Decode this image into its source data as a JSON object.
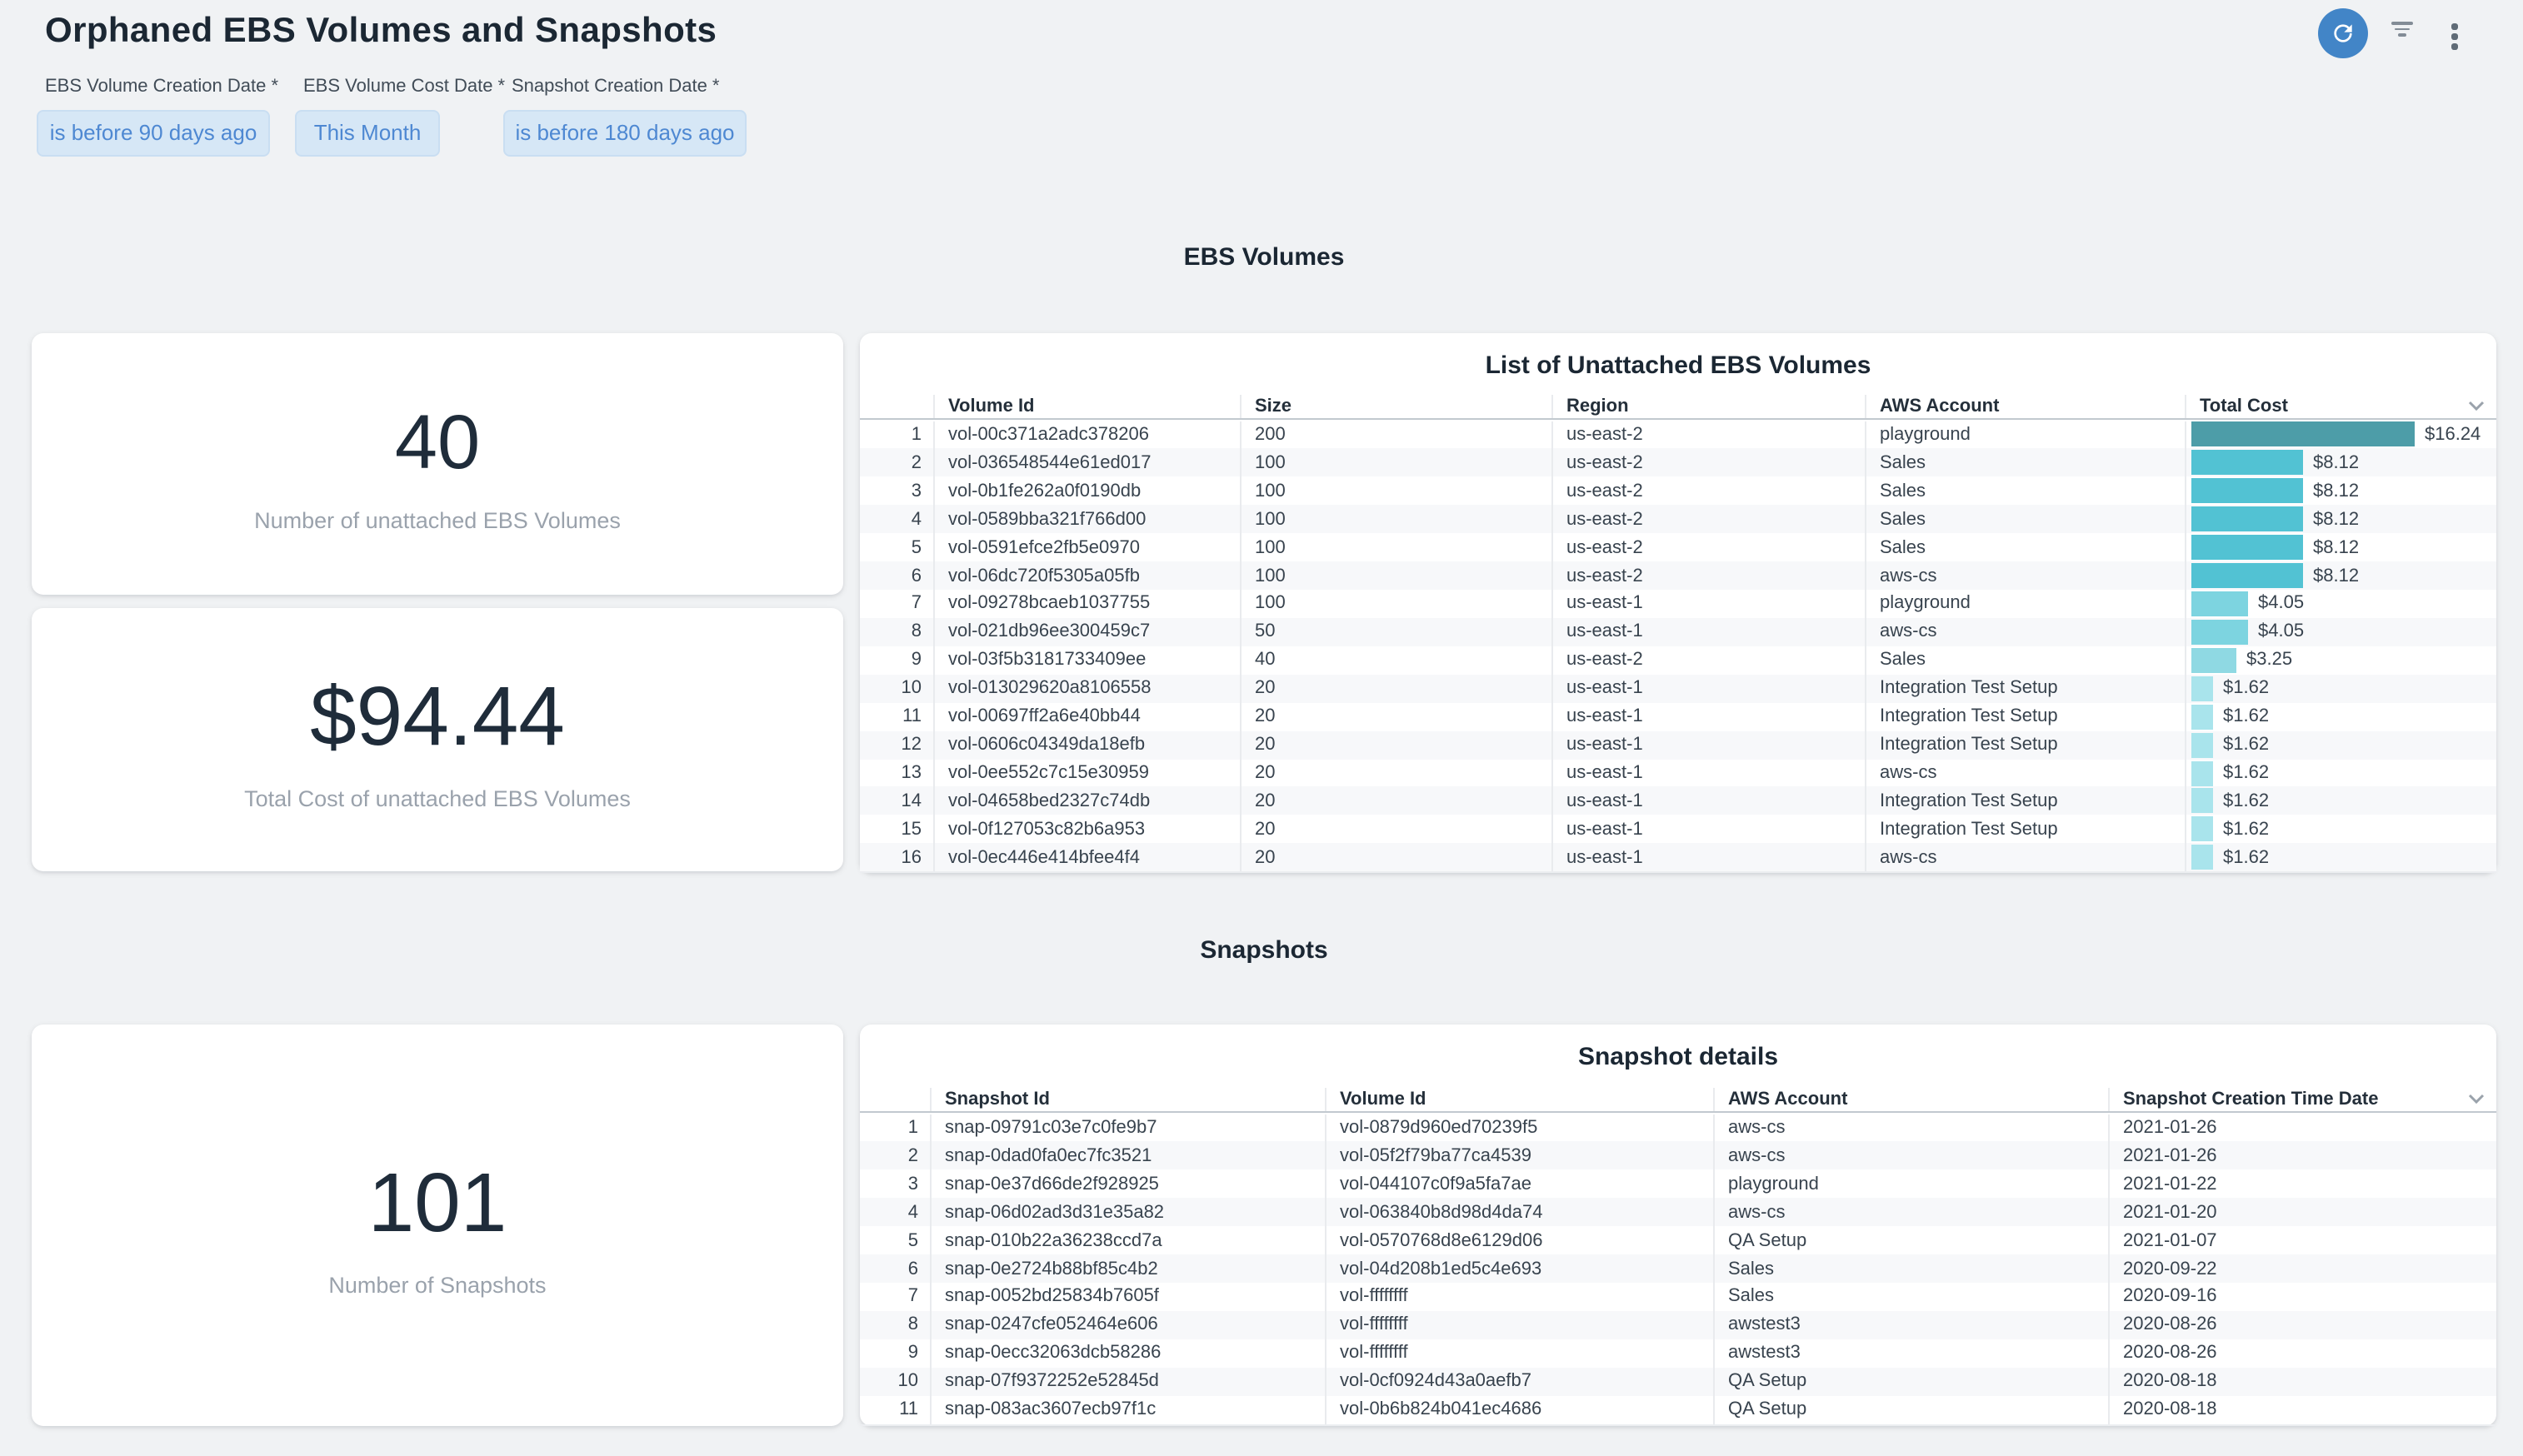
{
  "window": {
    "title": "Orphaned EBS Volumes and Snapshots"
  },
  "toolbar": {
    "refresh_icon": "refresh",
    "filter_icon": "filter-lines",
    "menu_icon": "kebab-menu"
  },
  "filters": [
    {
      "label": "EBS Volume Creation Date *",
      "value": "is before 90 days ago"
    },
    {
      "label": "EBS Volume Cost Date *",
      "value": "This Month"
    },
    {
      "label": "Snapshot Creation Date *",
      "value": "is before 180 days ago"
    }
  ],
  "ebs": {
    "heading": "EBS Volumes",
    "count_card": {
      "value": "40",
      "label": "Number of unattached EBS Volumes"
    },
    "cost_card": {
      "value": "$94.44",
      "label": "Total Cost of unattached EBS Volumes"
    },
    "table": {
      "title": "List of Unattached EBS Volumes",
      "columns": [
        "Volume Id",
        "Size",
        "Region",
        "AWS Account",
        "Total Cost"
      ],
      "rows": [
        {
          "n": "1",
          "volume_id": "vol-00c371a2adc378206",
          "size": "200",
          "region": "us-east-2",
          "account": "playground",
          "cost": "$16.24",
          "bar_pct": 100,
          "bar_color": "#4d9da8"
        },
        {
          "n": "2",
          "volume_id": "vol-036548544e61ed017",
          "size": "100",
          "region": "us-east-2",
          "account": "Sales",
          "cost": "$8.12",
          "bar_pct": 50,
          "bar_color": "#52c2d3"
        },
        {
          "n": "3",
          "volume_id": "vol-0b1fe262a0f0190db",
          "size": "100",
          "region": "us-east-2",
          "account": "Sales",
          "cost": "$8.12",
          "bar_pct": 50,
          "bar_color": "#52c2d3"
        },
        {
          "n": "4",
          "volume_id": "vol-0589bba321f766d00",
          "size": "100",
          "region": "us-east-2",
          "account": "Sales",
          "cost": "$8.12",
          "bar_pct": 50,
          "bar_color": "#52c2d3"
        },
        {
          "n": "5",
          "volume_id": "vol-0591efce2fb5e0970",
          "size": "100",
          "region": "us-east-2",
          "account": "Sales",
          "cost": "$8.12",
          "bar_pct": 50,
          "bar_color": "#52c2d3"
        },
        {
          "n": "6",
          "volume_id": "vol-06dc720f5305a05fb",
          "size": "100",
          "region": "us-east-2",
          "account": "aws-cs",
          "cost": "$8.12",
          "bar_pct": 50,
          "bar_color": "#52c2d3"
        },
        {
          "n": "7",
          "volume_id": "vol-09278bcaeb1037755",
          "size": "100",
          "region": "us-east-1",
          "account": "playground",
          "cost": "$4.05",
          "bar_pct": 25,
          "bar_color": "#7dd4e0"
        },
        {
          "n": "8",
          "volume_id": "vol-021db96ee300459c7",
          "size": "50",
          "region": "us-east-1",
          "account": "aws-cs",
          "cost": "$4.05",
          "bar_pct": 25,
          "bar_color": "#7dd4e0"
        },
        {
          "n": "9",
          "volume_id": "vol-03f5b3181733409ee",
          "size": "40",
          "region": "us-east-2",
          "account": "Sales",
          "cost": "$3.25",
          "bar_pct": 20,
          "bar_color": "#8fd9e3"
        },
        {
          "n": "10",
          "volume_id": "vol-013029620a8106558",
          "size": "20",
          "region": "us-east-1",
          "account": "Integration Test Setup",
          "cost": "$1.62",
          "bar_pct": 10,
          "bar_color": "#a9e4ec"
        },
        {
          "n": "11",
          "volume_id": "vol-00697ff2a6e40bb44",
          "size": "20",
          "region": "us-east-1",
          "account": "Integration Test Setup",
          "cost": "$1.62",
          "bar_pct": 10,
          "bar_color": "#a9e4ec"
        },
        {
          "n": "12",
          "volume_id": "vol-0606c04349da18efb",
          "size": "20",
          "region": "us-east-1",
          "account": "Integration Test Setup",
          "cost": "$1.62",
          "bar_pct": 10,
          "bar_color": "#a9e4ec"
        },
        {
          "n": "13",
          "volume_id": "vol-0ee552c7c15e30959",
          "size": "20",
          "region": "us-east-1",
          "account": "aws-cs",
          "cost": "$1.62",
          "bar_pct": 10,
          "bar_color": "#a9e4ec"
        },
        {
          "n": "14",
          "volume_id": "vol-04658bed2327c74db",
          "size": "20",
          "region": "us-east-1",
          "account": "Integration Test Setup",
          "cost": "$1.62",
          "bar_pct": 10,
          "bar_color": "#a9e4ec"
        },
        {
          "n": "15",
          "volume_id": "vol-0f127053c82b6a953",
          "size": "20",
          "region": "us-east-1",
          "account": "Integration Test Setup",
          "cost": "$1.62",
          "bar_pct": 10,
          "bar_color": "#a9e4ec"
        },
        {
          "n": "16",
          "volume_id": "vol-0ec446e414bfee4f4",
          "size": "20",
          "region": "us-east-1",
          "account": "aws-cs",
          "cost": "$1.62",
          "bar_pct": 10,
          "bar_color": "#a9e4ec"
        }
      ]
    }
  },
  "snapshots": {
    "heading": "Snapshots",
    "count_card": {
      "value": "101",
      "label": "Number of Snapshots"
    },
    "table": {
      "title": "Snapshot details",
      "columns": [
        "Snapshot Id",
        "Volume Id",
        "AWS Account",
        "Snapshot Creation Time Date"
      ],
      "rows": [
        {
          "n": "1",
          "snapshot_id": "snap-09791c03e7c0fe9b7",
          "volume_id": "vol-0879d960ed70239f5",
          "account": "aws-cs",
          "date": "2021-01-26"
        },
        {
          "n": "2",
          "snapshot_id": "snap-0dad0fa0ec7fc3521",
          "volume_id": "vol-05f2f79ba77ca4539",
          "account": "aws-cs",
          "date": "2021-01-26"
        },
        {
          "n": "3",
          "snapshot_id": "snap-0e37d66de2f928925",
          "volume_id": "vol-044107c0f9a5fa7ae",
          "account": "playground",
          "date": "2021-01-22"
        },
        {
          "n": "4",
          "snapshot_id": "snap-06d02ad3d31e35a82",
          "volume_id": "vol-063840b8d98d4da74",
          "account": "aws-cs",
          "date": "2021-01-20"
        },
        {
          "n": "5",
          "snapshot_id": "snap-010b22a36238ccd7a",
          "volume_id": "vol-0570768d8e6129d06",
          "account": "QA Setup",
          "date": "2021-01-07"
        },
        {
          "n": "6",
          "snapshot_id": "snap-0e2724b88bf85c4b2",
          "volume_id": "vol-04d208b1ed5c4e693",
          "account": "Sales",
          "date": "2020-09-22"
        },
        {
          "n": "7",
          "snapshot_id": "snap-0052bd25834b7605f",
          "volume_id": "vol-ffffffff",
          "account": "Sales",
          "date": "2020-09-16"
        },
        {
          "n": "8",
          "snapshot_id": "snap-0247cfe052464e606",
          "volume_id": "vol-ffffffff",
          "account": "awstest3",
          "date": "2020-08-26"
        },
        {
          "n": "9",
          "snapshot_id": "snap-0ecc32063dcb58286",
          "volume_id": "vol-ffffffff",
          "account": "awstest3",
          "date": "2020-08-26"
        },
        {
          "n": "10",
          "snapshot_id": "snap-07f9372252e52845d",
          "volume_id": "vol-0cf0924d43a0aefb7",
          "account": "QA Setup",
          "date": "2020-08-18"
        },
        {
          "n": "11",
          "snapshot_id": "snap-083ac3607ecb97f1c",
          "volume_id": "vol-0b6b824b041ec4686",
          "account": "QA Setup",
          "date": "2020-08-18"
        }
      ]
    }
  },
  "colors": {
    "page_bg": "#f0f2f4",
    "panel_bg": "#ffffff",
    "accent_blue": "#4285c7",
    "filter_chip_bg": "#d6e7f6",
    "filter_chip_text": "#4e88d2",
    "row_stripe": "#f7f8fa",
    "bar_scale": {
      "16.24": "#4d9da8",
      "8.12": "#52c2d3",
      "4.05": "#7dd4e0",
      "3.25": "#8fd9e3",
      "1.62": "#a9e4ec"
    }
  }
}
